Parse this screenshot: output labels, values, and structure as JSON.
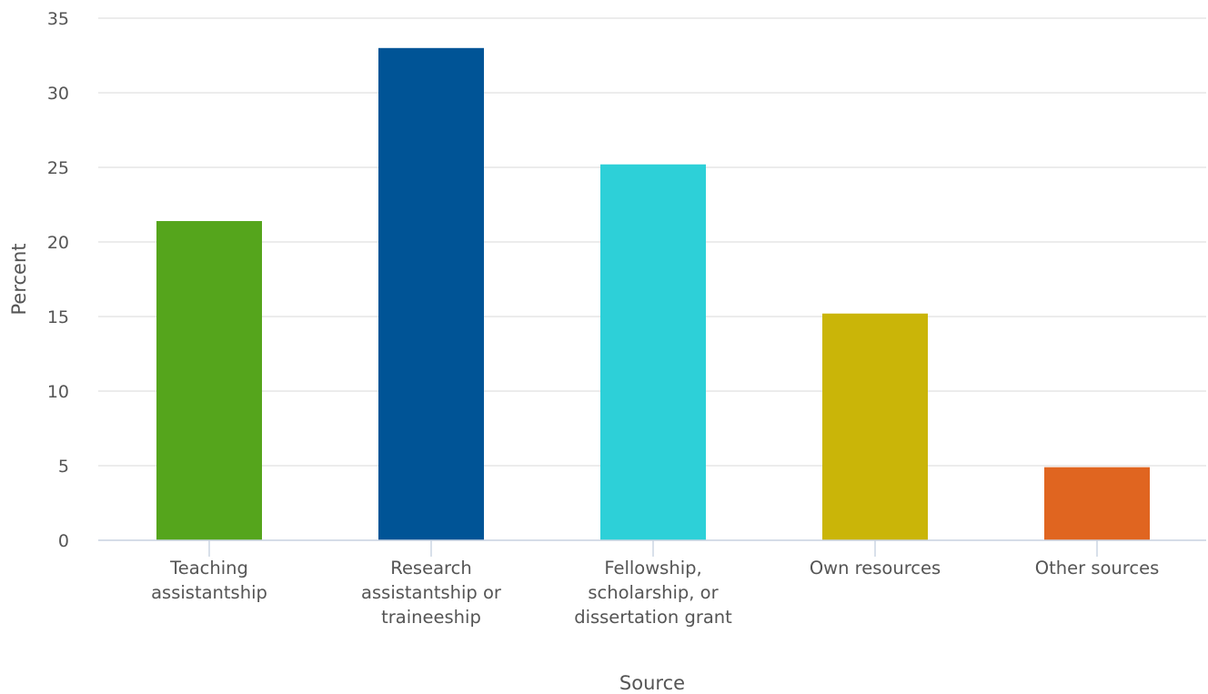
{
  "chart_data": {
    "type": "bar",
    "title": "",
    "xlabel": "Source",
    "ylabel": "Percent",
    "ylim": [
      0,
      35
    ],
    "yticks": [
      0,
      5,
      10,
      15,
      20,
      25,
      30,
      35
    ],
    "grid": true,
    "legend": "none",
    "categories": [
      [
        "Teaching",
        "assistantship"
      ],
      [
        "Research",
        "assistantship or",
        "traineeship"
      ],
      [
        "Fellowship,",
        "scholarship, or",
        "dissertation grant"
      ],
      [
        "Own resources"
      ],
      [
        "Other sources"
      ]
    ],
    "values": [
      21.4,
      33.0,
      25.2,
      15.2,
      4.9
    ],
    "colors": [
      "#55a51c",
      "#005496",
      "#2dd0d8",
      "#cab508",
      "#e06520"
    ]
  }
}
